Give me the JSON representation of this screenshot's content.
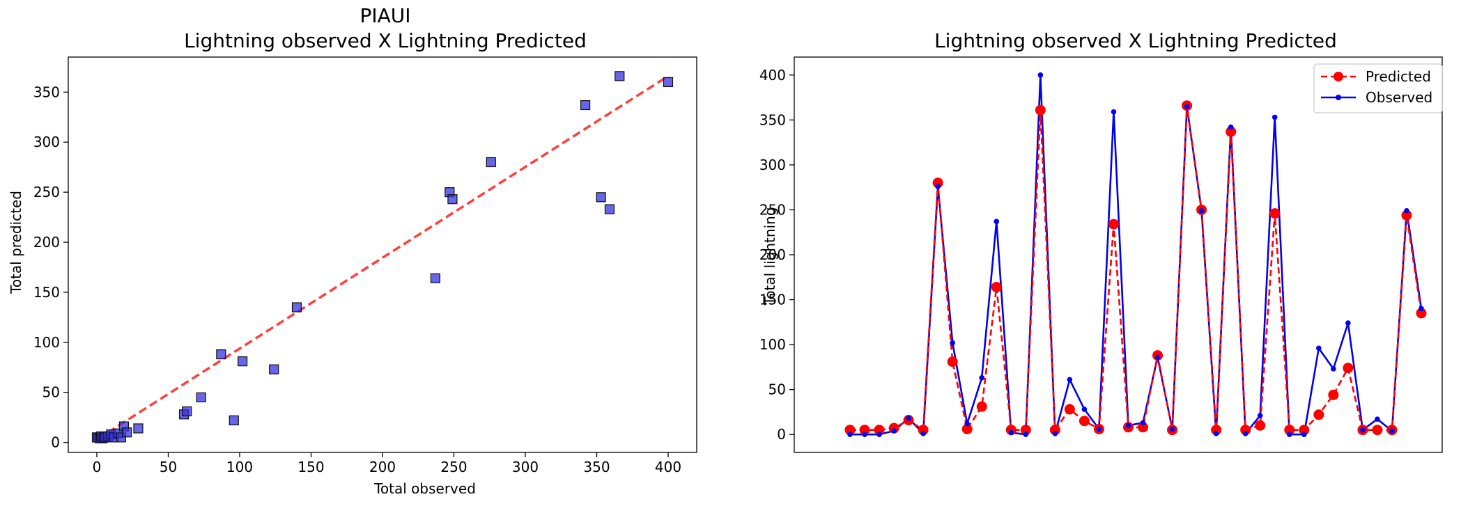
{
  "left": {
    "title": "PIAUI",
    "subtitle": "Lightning observed X Lightning Predicted",
    "xlabel": "Total observed",
    "ylabel": "Total predicted"
  },
  "right": {
    "title": "Lightning observed X Lightning Predicted",
    "ylabel": "Total lightning"
  },
  "colors": {
    "fit_line": "#ff0000",
    "scatter": "#3333dd",
    "predicted": "#ff0000",
    "observed": "#0000ee"
  },
  "chart_data": [
    {
      "type": "scatter",
      "title": "PIAUI",
      "subtitle": "Lightning observed X Lightning Predicted",
      "xlabel": "Total observed",
      "ylabel": "Total predicted",
      "xlim": [
        -20,
        420
      ],
      "ylim": [
        -10,
        385
      ],
      "xticks": [
        0,
        50,
        100,
        150,
        200,
        250,
        300,
        350,
        400
      ],
      "yticks": [
        0,
        50,
        100,
        150,
        200,
        250,
        300,
        350
      ],
      "fit_line": [
        [
          0,
          3
        ],
        [
          400,
          366
        ]
      ],
      "points": [
        [
          0,
          5
        ],
        [
          1,
          5
        ],
        [
          2,
          4
        ],
        [
          3,
          6
        ],
        [
          4,
          4
        ],
        [
          5,
          5
        ],
        [
          6,
          5
        ],
        [
          8,
          6
        ],
        [
          10,
          8
        ],
        [
          12,
          5
        ],
        [
          15,
          9
        ],
        [
          17,
          5
        ],
        [
          19,
          16
        ],
        [
          21,
          10
        ],
        [
          29,
          14
        ],
        [
          61,
          28
        ],
        [
          63,
          31
        ],
        [
          73,
          45
        ],
        [
          87,
          88
        ],
        [
          96,
          22
        ],
        [
          102,
          81
        ],
        [
          124,
          73
        ],
        [
          140,
          135
        ],
        [
          237,
          164
        ],
        [
          247,
          250
        ],
        [
          249,
          243
        ],
        [
          276,
          280
        ],
        [
          342,
          337
        ],
        [
          353,
          245
        ],
        [
          359,
          233
        ],
        [
          366,
          366
        ],
        [
          400,
          360
        ]
      ]
    },
    {
      "type": "line",
      "title": "Lightning observed X Lightning Predicted",
      "ylabel": "Total lightning",
      "ylim": [
        -20,
        420
      ],
      "yticks": [
        0,
        50,
        100,
        150,
        200,
        250,
        300,
        350,
        400
      ],
      "legend": "top-right",
      "series": [
        {
          "name": "Predicted",
          "style": "dashed-circles",
          "values": [
            5,
            5,
            5,
            7,
            16,
            5,
            280,
            81,
            6,
            31,
            164,
            5,
            5,
            361,
            5,
            28,
            15,
            6,
            234,
            8,
            8,
            88,
            5,
            366,
            250,
            5,
            337,
            5,
            10,
            246,
            5,
            5,
            22,
            44,
            74,
            5,
            5,
            5,
            244,
            135
          ]
        },
        {
          "name": "Observed",
          "style": "solid-dots",
          "values": [
            0,
            0,
            0,
            4,
            18,
            1,
            276,
            102,
            12,
            63,
            237,
            2,
            0,
            400,
            1,
            61,
            28,
            6,
            359,
            10,
            13,
            86,
            6,
            365,
            249,
            1,
            342,
            1,
            21,
            353,
            0,
            0,
            96,
            73,
            124,
            5,
            17,
            4,
            249,
            140
          ]
        }
      ]
    }
  ]
}
